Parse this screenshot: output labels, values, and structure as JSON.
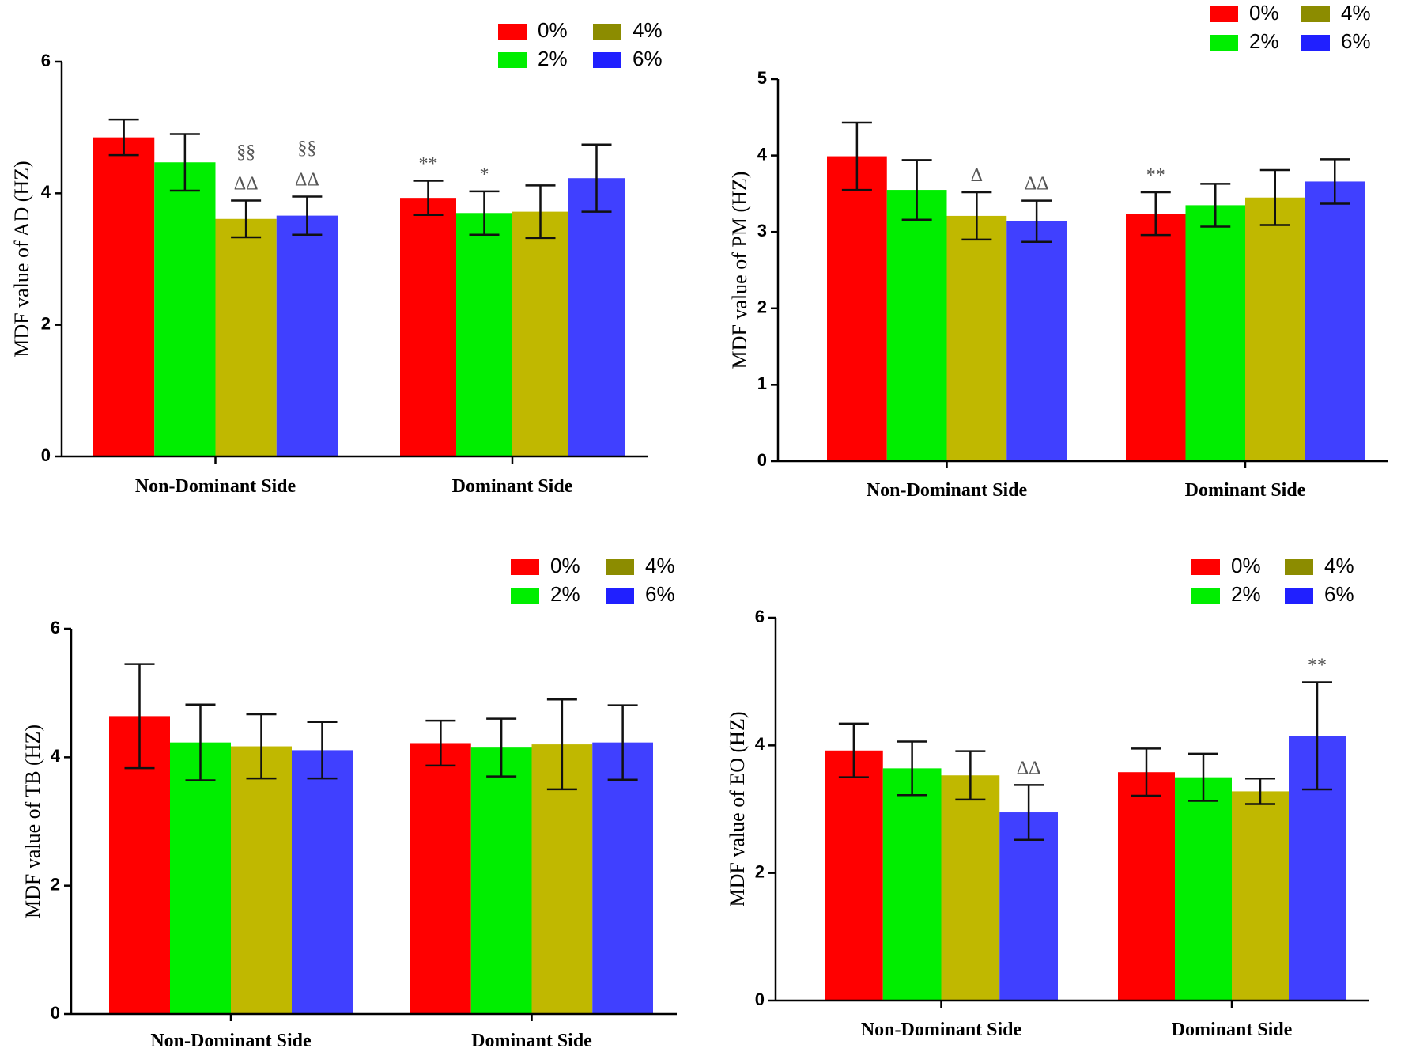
{
  "series_colors": {
    "0%": "#ff0000",
    "2%": "#00ee00",
    "4%": "#c0b800",
    "6%": "#4040ff"
  },
  "legend_swatch_colors": {
    "0%": "#ff0000",
    "2%": "#00ee00",
    "4%": "#8c8c00",
    "6%": "#2020ff"
  },
  "chart_data": [
    {
      "id": "ad",
      "type": "bar",
      "ylabel": "MDF value of  AD (HZ)",
      "ylim": [
        0,
        6
      ],
      "yticks": [
        0,
        2,
        4,
        6
      ],
      "categories": [
        "Non-Dominant Side",
        "Dominant Side"
      ],
      "legend": [
        "0%",
        "4%",
        "2%",
        "6%"
      ],
      "series": [
        {
          "name": "0%",
          "values": [
            4.85,
            3.93
          ],
          "errors": [
            0.27,
            0.26
          ]
        },
        {
          "name": "2%",
          "values": [
            4.47,
            3.7
          ],
          "errors": [
            0.43,
            0.33
          ]
        },
        {
          "name": "4%",
          "values": [
            3.61,
            3.72
          ],
          "errors": [
            0.28,
            0.4
          ]
        },
        {
          "name": "6%",
          "values": [
            3.66,
            4.23
          ],
          "errors": [
            0.29,
            0.51
          ]
        }
      ],
      "annotations": [
        {
          "series": "4%",
          "category": 0,
          "lines": [
            "§§",
            "ΔΔ"
          ]
        },
        {
          "series": "6%",
          "category": 0,
          "lines": [
            "§§",
            "ΔΔ"
          ]
        },
        {
          "series": "0%",
          "category": 1,
          "lines": [
            "**"
          ]
        },
        {
          "series": "2%",
          "category": 1,
          "lines": [
            "*"
          ]
        }
      ]
    },
    {
      "id": "pm",
      "type": "bar",
      "ylabel": "MDF value of  PM (HZ)",
      "ylim": [
        0,
        5
      ],
      "yticks": [
        0,
        1,
        2,
        3,
        4,
        5
      ],
      "categories": [
        "Non-Dominant Side",
        "Dominant Side"
      ],
      "legend": [
        "0%",
        "4%",
        "2%",
        "6%"
      ],
      "series": [
        {
          "name": "0%",
          "values": [
            3.99,
            3.24
          ],
          "errors": [
            0.44,
            0.28
          ]
        },
        {
          "name": "2%",
          "values": [
            3.55,
            3.35
          ],
          "errors": [
            0.39,
            0.28
          ]
        },
        {
          "name": "4%",
          "values": [
            3.21,
            3.45
          ],
          "errors": [
            0.31,
            0.36
          ]
        },
        {
          "name": "6%",
          "values": [
            3.14,
            3.66
          ],
          "errors": [
            0.27,
            0.29
          ]
        }
      ],
      "annotations": [
        {
          "series": "4%",
          "category": 0,
          "lines": [
            "Δ"
          ]
        },
        {
          "series": "6%",
          "category": 0,
          "lines": [
            "ΔΔ"
          ]
        },
        {
          "series": "0%",
          "category": 1,
          "lines": [
            "**"
          ]
        }
      ]
    },
    {
      "id": "tb",
      "type": "bar",
      "ylabel": "MDF value of  TB (HZ)",
      "ylim": [
        0,
        6
      ],
      "yticks": [
        0,
        2,
        4,
        6
      ],
      "categories": [
        "Non-Dominant Side",
        "Dominant Side"
      ],
      "legend": [
        "0%",
        "4%",
        "2%",
        "6%"
      ],
      "series": [
        {
          "name": "0%",
          "values": [
            4.64,
            4.22
          ],
          "errors": [
            0.81,
            0.35
          ]
        },
        {
          "name": "2%",
          "values": [
            4.23,
            4.15
          ],
          "errors": [
            0.59,
            0.45
          ]
        },
        {
          "name": "4%",
          "values": [
            4.17,
            4.2
          ],
          "errors": [
            0.5,
            0.7
          ]
        },
        {
          "name": "6%",
          "values": [
            4.11,
            4.23
          ],
          "errors": [
            0.44,
            0.58
          ]
        }
      ],
      "annotations": []
    },
    {
      "id": "eo",
      "type": "bar",
      "ylabel": "MDF value of  EO (HZ)",
      "ylim": [
        0,
        6
      ],
      "yticks": [
        0,
        2,
        4,
        6
      ],
      "categories": [
        "Non-Dominant Side",
        "Dominant Side"
      ],
      "legend": [
        "0%",
        "4%",
        "2%",
        "6%"
      ],
      "series": [
        {
          "name": "0%",
          "values": [
            3.92,
            3.58
          ],
          "errors": [
            0.42,
            0.37
          ]
        },
        {
          "name": "2%",
          "values": [
            3.64,
            3.5
          ],
          "errors": [
            0.42,
            0.37
          ]
        },
        {
          "name": "4%",
          "values": [
            3.53,
            3.28
          ],
          "errors": [
            0.38,
            0.2
          ]
        },
        {
          "name": "6%",
          "values": [
            2.95,
            4.15
          ],
          "errors": [
            0.43,
            0.84
          ]
        }
      ],
      "annotations": [
        {
          "series": "6%",
          "category": 0,
          "lines": [
            "ΔΔ"
          ]
        },
        {
          "series": "6%",
          "category": 1,
          "lines": [
            "**"
          ]
        }
      ]
    }
  ]
}
